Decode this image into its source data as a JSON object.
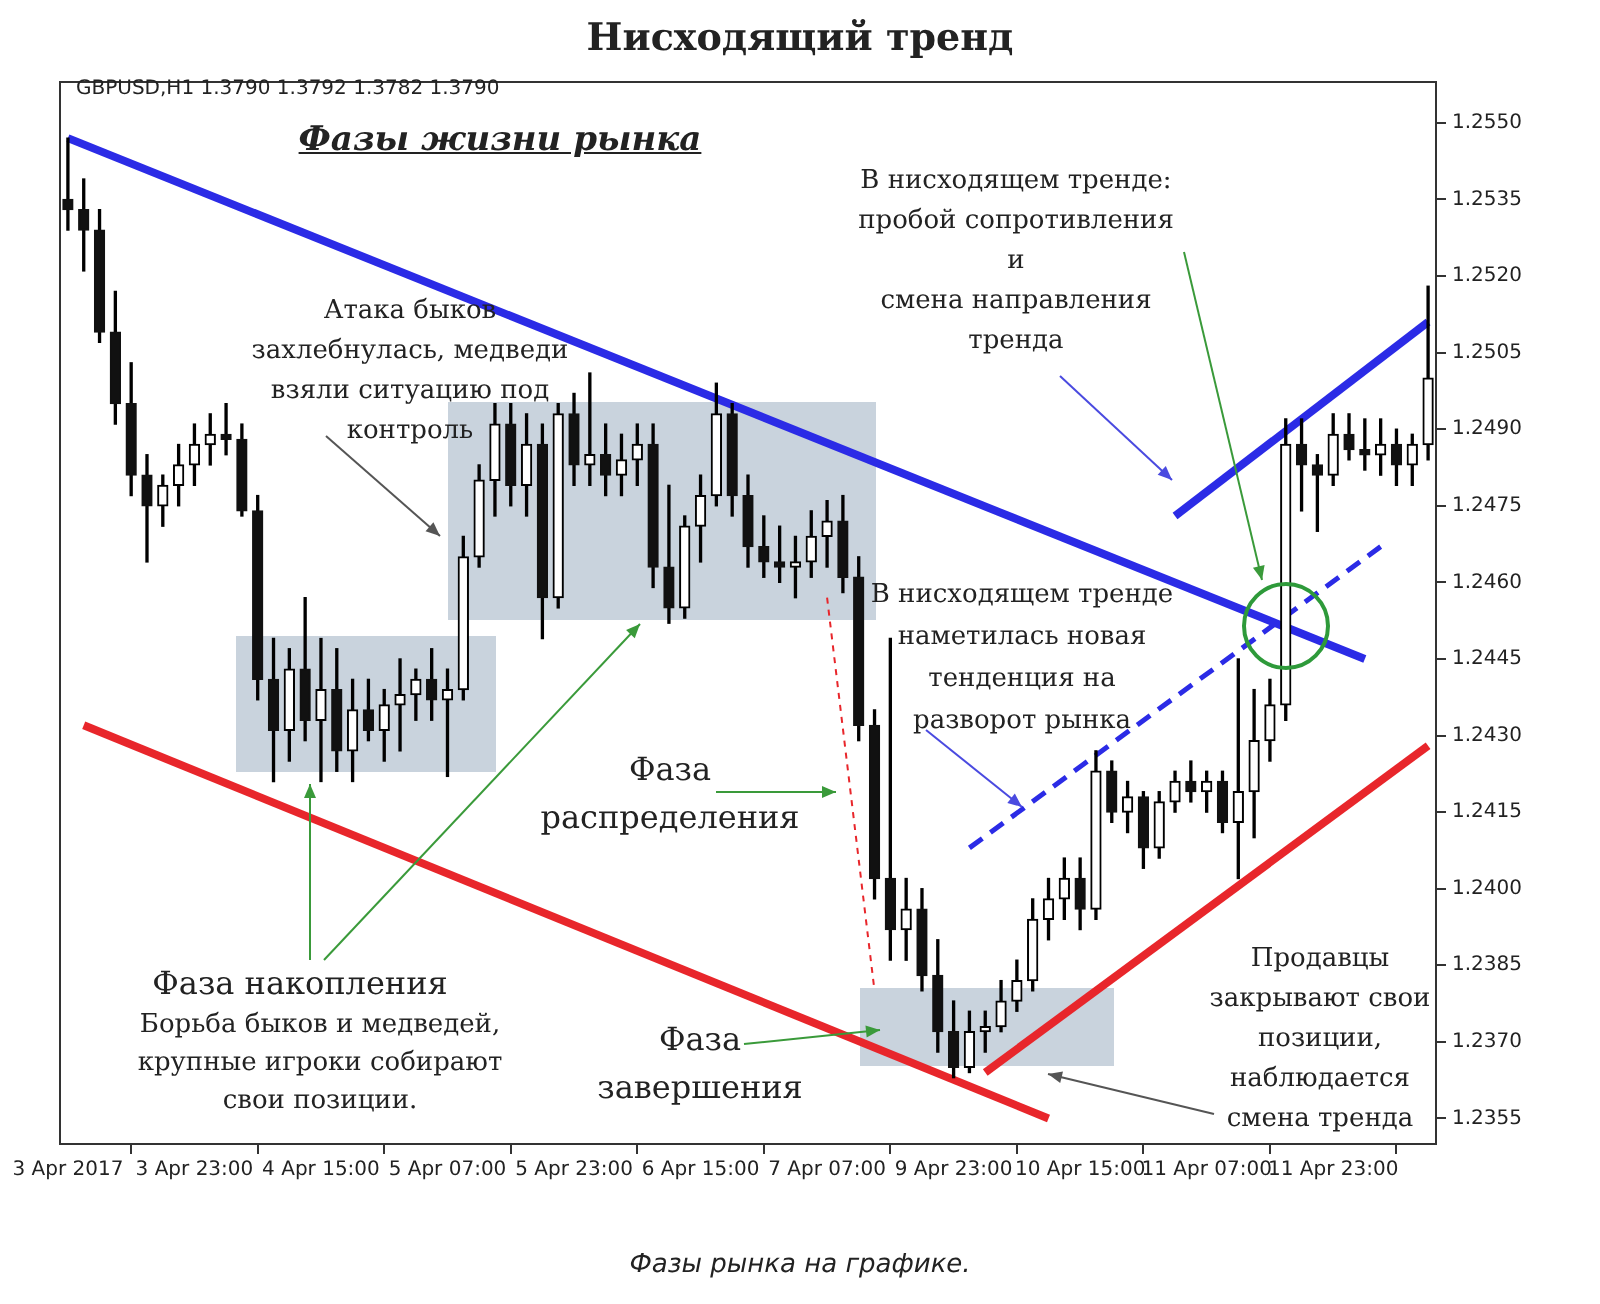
{
  "chart_data": {
    "type": "candlestick",
    "title": "Нисходящий тренд",
    "subtitle": "Фазы жизни рынка",
    "annotations": [
      "GBPUSD,H1  1.3790 1.3792 1.3782 1.3790",
      "Атака быков\nзахлебнулась, медведи\nвзяли ситуацию под\nконтроль",
      "В нисходящем тренде:\nпробой сопротивления\nи\nсмена направления\nтренда",
      {
        "text": "В нисходящем тренде\nнаметилась новая\nтенденция на\nразворот рынка",
        "y": 1.2416
      },
      "Фаза\nраспределения",
      "Фаза накопления",
      "Борьба быков и медведей,\nкрупные игроки собирают\nсвои позиции.",
      "Фаза\nзавершения",
      "Продавцы\nзакрывают свои\nпозиции,\nнаблюдается\nсмена тренда",
      "Фазы рынка на графике."
    ],
    "categories": [
      "3 Apr 2017",
      null,
      null,
      null,
      null,
      null,
      null,
      null,
      "3 Apr 23:00",
      null,
      null,
      null,
      null,
      null,
      null,
      null,
      "4 Apr 15:00",
      null,
      null,
      null,
      null,
      null,
      null,
      null,
      "5 Apr 07:00",
      null,
      null,
      null,
      null,
      null,
      null,
      null,
      "5 Apr 23:00",
      null,
      null,
      null,
      null,
      null,
      null,
      null,
      "6 Apr 15:00",
      null,
      null,
      null,
      null,
      null,
      null,
      null,
      "7 Apr 07:00",
      null,
      null,
      null,
      null,
      null,
      null,
      null,
      "9 Apr 23:00",
      null,
      null,
      null,
      null,
      null,
      null,
      null,
      "10 Apr 15:00",
      null,
      null,
      null,
      null,
      null,
      null,
      null,
      "11 Apr 07:00",
      null,
      null,
      null,
      null,
      null,
      null,
      null,
      "11 Apr 23:00",
      null,
      null,
      null,
      null,
      null,
      null
    ],
    "ohlc": [
      [
        1.2535,
        1.2547,
        1.2529,
        1.2533
      ],
      [
        1.2533,
        1.2539,
        1.2521,
        1.2529
      ],
      [
        1.2529,
        1.2533,
        1.2507,
        1.2509
      ],
      [
        1.2509,
        1.2517,
        1.2491,
        1.2495
      ],
      [
        1.2495,
        1.2503,
        1.2477,
        1.2481
      ],
      [
        1.2481,
        1.2485,
        1.2464,
        1.2475
      ],
      [
        1.2475,
        1.2481,
        1.2471,
        1.2479
      ],
      [
        1.2479,
        1.2487,
        1.2475,
        1.2483
      ],
      [
        1.2483,
        1.2491,
        1.2479,
        1.2487
      ],
      [
        1.2487,
        1.2493,
        1.2483,
        1.2489
      ],
      [
        1.2489,
        1.2495,
        1.2485,
        1.2488
      ],
      [
        1.2488,
        1.2491,
        1.2473,
        1.2474
      ],
      [
        1.2474,
        1.2477,
        1.2437,
        1.2441
      ],
      [
        1.2441,
        1.2449,
        1.2421,
        1.2431
      ],
      [
        1.2431,
        1.2447,
        1.2425,
        1.2443
      ],
      [
        1.2443,
        1.2457,
        1.2429,
        1.2433
      ],
      [
        1.2433,
        1.2449,
        1.2421,
        1.2439
      ],
      [
        1.2439,
        1.2447,
        1.2423,
        1.2427
      ],
      [
        1.2427,
        1.2441,
        1.2421,
        1.2435
      ],
      [
        1.2435,
        1.2441,
        1.2429,
        1.2431
      ],
      [
        1.2431,
        1.2439,
        1.2425,
        1.2436
      ],
      [
        1.2436,
        1.2445,
        1.2427,
        1.2438
      ],
      [
        1.2438,
        1.2443,
        1.2433,
        1.2441
      ],
      [
        1.2441,
        1.2447,
        1.2433,
        1.2437
      ],
      [
        1.2437,
        1.2443,
        1.2422,
        1.2439
      ],
      [
        1.2439,
        1.2469,
        1.2437,
        1.2465
      ],
      [
        1.2465,
        1.2483,
        1.2463,
        1.248
      ],
      [
        1.248,
        1.2495,
        1.2473,
        1.2491
      ],
      [
        1.2491,
        1.2495,
        1.2475,
        1.2479
      ],
      [
        1.2479,
        1.2493,
        1.2473,
        1.2487
      ],
      [
        1.2487,
        1.2491,
        1.2449,
        1.2457
      ],
      [
        1.2457,
        1.2495,
        1.2455,
        1.2493
      ],
      [
        1.2493,
        1.2497,
        1.2479,
        1.2483
      ],
      [
        1.2483,
        1.2501,
        1.2479,
        1.2485
      ],
      [
        1.2485,
        1.2491,
        1.2477,
        1.2481
      ],
      [
        1.2481,
        1.2489,
        1.2477,
        1.2484
      ],
      [
        1.2484,
        1.2491,
        1.2479,
        1.2487
      ],
      [
        1.2487,
        1.2491,
        1.2459,
        1.2463
      ],
      [
        1.2463,
        1.2479,
        1.2452,
        1.2455
      ],
      [
        1.2455,
        1.2473,
        1.2453,
        1.2471
      ],
      [
        1.2471,
        1.2481,
        1.2464,
        1.2477
      ],
      [
        1.2477,
        1.2499,
        1.2475,
        1.2493
      ],
      [
        1.2493,
        1.2495,
        1.2473,
        1.2477
      ],
      [
        1.2477,
        1.2481,
        1.2463,
        1.2467
      ],
      [
        1.2467,
        1.2473,
        1.2461,
        1.2464
      ],
      [
        1.2464,
        1.2471,
        1.246,
        1.2463
      ],
      [
        1.2463,
        1.2469,
        1.2457,
        1.2464
      ],
      [
        1.2464,
        1.2474,
        1.2461,
        1.2469
      ],
      [
        1.2469,
        1.2476,
        1.2463,
        1.2472
      ],
      [
        1.2472,
        1.2477,
        1.2458,
        1.2461
      ],
      [
        1.2461,
        1.2465,
        1.2429,
        1.2432
      ],
      [
        1.2432,
        1.2435,
        1.2398,
        1.2402
      ],
      [
        1.2402,
        1.2449,
        1.2386,
        1.2392
      ],
      [
        1.2392,
        1.2402,
        1.2386,
        1.2396
      ],
      [
        1.2396,
        1.24,
        1.238,
        1.2383
      ],
      [
        1.2383,
        1.239,
        1.2368,
        1.2372
      ],
      [
        1.2372,
        1.2378,
        1.2363,
        1.2365
      ],
      [
        1.2365,
        1.2376,
        1.2364,
        1.2372
      ],
      [
        1.2372,
        1.2376,
        1.2368,
        1.2373
      ],
      [
        1.2373,
        1.2382,
        1.2372,
        1.2378
      ],
      [
        1.2378,
        1.2386,
        1.2376,
        1.2382
      ],
      [
        1.2382,
        1.2398,
        1.238,
        1.2394
      ],
      [
        1.2394,
        1.2402,
        1.239,
        1.2398
      ],
      [
        1.2398,
        1.2406,
        1.2394,
        1.2402
      ],
      [
        1.2402,
        1.2406,
        1.2392,
        1.2396
      ],
      [
        1.2396,
        1.2427,
        1.2394,
        1.2423
      ],
      [
        1.2423,
        1.2425,
        1.2413,
        1.2415
      ],
      [
        1.2415,
        1.2421,
        1.2411,
        1.2418
      ],
      [
        1.2418,
        1.2419,
        1.2404,
        1.2408
      ],
      [
        1.2408,
        1.2419,
        1.2406,
        1.2417
      ],
      [
        1.2417,
        1.2423,
        1.2415,
        1.2421
      ],
      [
        1.2421,
        1.2425,
        1.2417,
        1.2419
      ],
      [
        1.2419,
        1.2423,
        1.2415,
        1.2421
      ],
      [
        1.2421,
        1.2423,
        1.2411,
        1.2413
      ],
      [
        1.2413,
        1.2445,
        1.2402,
        1.2419
      ],
      [
        1.2419,
        1.2439,
        1.241,
        1.2429
      ],
      [
        1.2429,
        1.2441,
        1.2425,
        1.2436
      ],
      [
        1.2436,
        1.2492,
        1.2433,
        1.2487
      ],
      [
        1.2487,
        1.2492,
        1.2474,
        1.2483
      ],
      [
        1.2483,
        1.2485,
        1.247,
        1.2481
      ],
      [
        1.2481,
        1.2493,
        1.2479,
        1.2489
      ],
      [
        1.2489,
        1.2493,
        1.2484,
        1.2486
      ],
      [
        1.2486,
        1.2492,
        1.2482,
        1.2485
      ],
      [
        1.2485,
        1.2492,
        1.2481,
        1.2487
      ],
      [
        1.2487,
        1.249,
        1.2479,
        1.2483
      ],
      [
        1.2483,
        1.2489,
        1.2479,
        1.2487
      ],
      [
        1.2487,
        1.2518,
        1.2484,
        1.25
      ]
    ],
    "series": [
      {
        "type": "line",
        "color": "#2b2be6",
        "line_style": "solid",
        "values": [
          1.2547,
          null,
          null,
          null,
          null,
          null,
          null,
          null,
          null,
          null,
          null,
          null,
          null,
          null,
          null,
          null,
          null,
          null,
          null,
          null,
          null,
          null,
          null,
          null,
          null,
          null,
          null,
          null,
          null,
          null,
          null,
          null,
          null,
          null,
          null,
          null,
          null,
          null,
          null,
          null,
          null,
          null,
          null,
          null,
          null,
          null,
          null,
          null,
          null,
          null,
          null,
          null,
          null,
          null,
          null,
          null,
          null,
          null,
          null,
          null,
          null,
          null,
          null,
          null,
          null,
          null,
          null,
          null,
          null,
          null,
          null,
          null,
          null,
          null,
          null,
          null,
          null,
          null,
          null,
          null,
          null,
          null,
          1.2445,
          null,
          null,
          null,
          null
        ]
      },
      {
        "type": "line",
        "color": "#e8262b",
        "line_style": "solid",
        "values": [
          null,
          1.2432,
          null,
          null,
          null,
          null,
          null,
          null,
          null,
          null,
          null,
          null,
          null,
          null,
          null,
          null,
          null,
          null,
          null,
          null,
          null,
          null,
          null,
          null,
          null,
          null,
          null,
          null,
          null,
          null,
          null,
          null,
          null,
          null,
          null,
          null,
          null,
          null,
          null,
          null,
          null,
          null,
          null,
          null,
          null,
          null,
          null,
          null,
          null,
          null,
          null,
          null,
          null,
          null,
          null,
          null,
          null,
          null,
          null,
          null,
          null,
          null,
          1.2355,
          null,
          null,
          null,
          null,
          null,
          null,
          null,
          null,
          null,
          null,
          null,
          null,
          null,
          null,
          null,
          null,
          null,
          null,
          null,
          null,
          null,
          null,
          null,
          null
        ]
      },
      {
        "type": "line",
        "color": "#e8262b",
        "line_style": "solid",
        "values": [
          null,
          null,
          null,
          null,
          null,
          null,
          null,
          null,
          null,
          null,
          null,
          null,
          null,
          null,
          null,
          null,
          null,
          null,
          null,
          null,
          null,
          null,
          null,
          null,
          null,
          null,
          null,
          null,
          null,
          null,
          null,
          null,
          null,
          null,
          null,
          null,
          null,
          null,
          null,
          null,
          null,
          null,
          null,
          null,
          null,
          null,
          null,
          null,
          null,
          null,
          null,
          null,
          null,
          null,
          null,
          null,
          null,
          null,
          1.2364,
          null,
          null,
          null,
          null,
          null,
          null,
          null,
          null,
          null,
          null,
          null,
          null,
          null,
          null,
          null,
          null,
          null,
          null,
          null,
          null,
          null,
          null,
          null,
          null,
          null,
          null,
          null,
          1.2428
        ]
      },
      {
        "type": "line",
        "color": "#2b2be6",
        "line_style": "solid",
        "values": [
          null,
          null,
          null,
          null,
          null,
          null,
          null,
          null,
          null,
          null,
          null,
          null,
          null,
          null,
          null,
          null,
          null,
          null,
          null,
          null,
          null,
          null,
          null,
          null,
          null,
          null,
          null,
          null,
          null,
          null,
          null,
          null,
          null,
          null,
          null,
          null,
          null,
          null,
          null,
          null,
          null,
          null,
          null,
          null,
          null,
          null,
          null,
          null,
          null,
          null,
          null,
          null,
          null,
          null,
          null,
          null,
          null,
          null,
          null,
          null,
          null,
          null,
          null,
          null,
          null,
          null,
          null,
          null,
          null,
          null,
          1.2473,
          null,
          null,
          null,
          null,
          null,
          null,
          null,
          null,
          null,
          null,
          null,
          null,
          null,
          null,
          null,
          1.2511
        ]
      },
      {
        "type": "line",
        "color": "#2b2be6",
        "line_style": "dashed",
        "values": [
          null,
          null,
          null,
          null,
          null,
          null,
          null,
          null,
          null,
          null,
          null,
          null,
          null,
          null,
          null,
          null,
          null,
          null,
          null,
          null,
          null,
          null,
          null,
          null,
          null,
          null,
          null,
          null,
          null,
          null,
          null,
          null,
          null,
          null,
          null,
          null,
          null,
          null,
          null,
          null,
          null,
          null,
          null,
          null,
          null,
          null,
          null,
          null,
          null,
          null,
          null,
          null,
          null,
          null,
          null,
          null,
          null,
          1.2408,
          null,
          null,
          null,
          null,
          null,
          null,
          null,
          null,
          null,
          null,
          null,
          null,
          null,
          null,
          null,
          null,
          null,
          null,
          null,
          null,
          null,
          null,
          null,
          null,
          null,
          1.2467,
          null,
          null,
          null
        ]
      },
      {
        "type": "line",
        "color": "#e8262b",
        "line_style": "dotted",
        "values": [
          null,
          null,
          null,
          null,
          null,
          null,
          null,
          null,
          null,
          null,
          null,
          null,
          null,
          null,
          null,
          null,
          null,
          null,
          null,
          null,
          null,
          null,
          null,
          null,
          null,
          null,
          null,
          null,
          null,
          null,
          null,
          null,
          null,
          null,
          null,
          null,
          null,
          null,
          null,
          null,
          null,
          null,
          null,
          null,
          null,
          null,
          null,
          null,
          1.2457,
          null,
          null,
          1.238,
          null,
          null,
          null,
          null,
          null,
          null,
          null,
          null,
          null,
          null,
          null,
          null,
          null,
          null,
          null,
          null,
          null,
          null,
          null,
          null,
          null,
          null,
          null,
          null,
          null,
          null,
          null,
          null,
          null,
          null,
          null,
          null,
          null,
          null,
          null
        ]
      }
    ],
    "ylim": [
      1.235,
      1.2558
    ],
    "yticks": [
      1.2355,
      {
        "value": 1.237,
        "label": "1.2370"
      },
      1.2385,
      {
        "value": 1.24,
        "label": "1.2400"
      },
      1.2415,
      {
        "value": 1.243,
        "label": "1.2430"
      },
      1.2445,
      {
        "value": 1.246,
        "label": "1.2460"
      },
      1.2475,
      {
        "value": 1.249,
        "label": "1.2490"
      },
      1.2505,
      {
        "value": 1.252,
        "label": "1.2520"
      },
      1.2535,
      {
        "value": 1.255,
        "label": "1.2550"
      }
    ],
    "marker": "none",
    "legend": false
  }
}
